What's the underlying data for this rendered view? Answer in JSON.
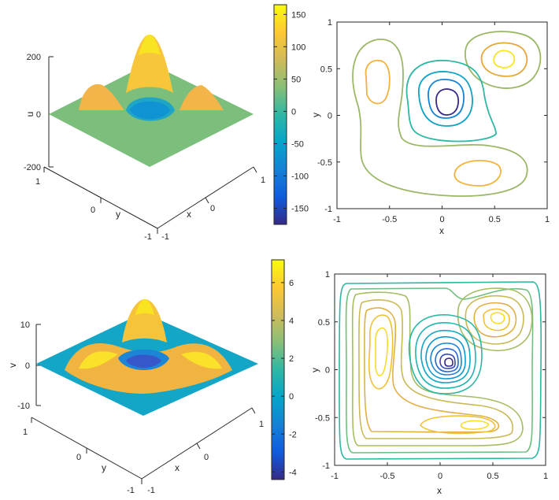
{
  "chart_data": [
    {
      "id": "surface-u",
      "type": "surface",
      "zlabel": "u",
      "xlabel": "x",
      "ylabel": "y",
      "zticks": [
        "200",
        "0",
        "-200"
      ],
      "yticks": [
        "1",
        "0",
        "-1"
      ],
      "xticks": [
        "1",
        "0",
        "-1"
      ],
      "zlim": [
        -200,
        200
      ],
      "peaks": [
        {
          "x": 0.6,
          "y": 0.6,
          "z": 170
        },
        {
          "x": -0.55,
          "y": 0.35,
          "z": 60
        },
        {
          "x": 0.3,
          "y": -0.6,
          "z": 60
        },
        {
          "x": 0.05,
          "y": 0.1,
          "z": -170
        }
      ]
    },
    {
      "id": "colorbar-u",
      "type": "colorbar",
      "ticks": [
        "150",
        "100",
        "50",
        "0",
        "-50",
        "-100",
        "-150"
      ],
      "values": [
        150,
        100,
        50,
        0,
        -50,
        -100,
        -150
      ],
      "range": [
        -175,
        165
      ]
    },
    {
      "id": "contour-u",
      "type": "contour",
      "xlabel": "x",
      "ylabel": "y",
      "xticks": [
        "-1",
        "-0.5",
        "0",
        "0.5",
        "1"
      ],
      "yticks": [
        "1",
        "0.5",
        "0",
        "-0.5",
        "-1"
      ],
      "xlim": [
        -1,
        1
      ],
      "ylim": [
        -1,
        1
      ]
    },
    {
      "id": "surface-v",
      "type": "surface",
      "zlabel": "v",
      "xlabel": "x",
      "ylabel": "y",
      "zticks": [
        "10",
        "0",
        "-10"
      ],
      "yticks": [
        "1",
        "0",
        "-1"
      ],
      "xticks": [
        "1",
        "0",
        "-1"
      ],
      "zlim": [
        -10,
        10
      ]
    },
    {
      "id": "colorbar-v",
      "type": "colorbar",
      "ticks": [
        "6",
        "4",
        "2",
        "0",
        "-2",
        "-4"
      ],
      "values": [
        6,
        4,
        2,
        0,
        -2,
        -4
      ],
      "range": [
        -4.4,
        7.2
      ]
    },
    {
      "id": "contour-v",
      "type": "contour",
      "xlabel": "x",
      "ylabel": "y",
      "xticks": [
        "-1",
        "-0.5",
        "0",
        "0.5",
        "1"
      ],
      "yticks": [
        "1",
        "0.5",
        "0",
        "-0.5",
        "-1"
      ],
      "xlim": [
        -1,
        1
      ],
      "ylim": [
        -1,
        1
      ]
    }
  ],
  "colors": {
    "parula": [
      "#352a87",
      "#0f5cdd",
      "#1481d6",
      "#06a4ca",
      "#2eb7a4",
      "#87bf77",
      "#d1bb59",
      "#fec832",
      "#f9fb0e"
    ]
  }
}
